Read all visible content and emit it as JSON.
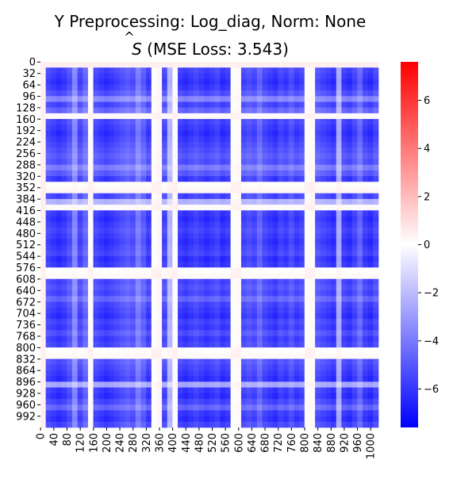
{
  "chart_data": {
    "type": "heatmap",
    "title_line1": "Y Preprocessing: Log_diag, Norm: None",
    "title_line2_symbol": "S",
    "title_line2_hat": "^",
    "title_line2_text": " (MSE Loss: 3.543)",
    "matrix_size": 1024,
    "y_ticks": [
      "0",
      "32",
      "64",
      "96",
      "128",
      "160",
      "192",
      "224",
      "256",
      "288",
      "320",
      "352",
      "384",
      "416",
      "448",
      "480",
      "512",
      "544",
      "576",
      "608",
      "640",
      "672",
      "704",
      "736",
      "768",
      "800",
      "832",
      "864",
      "896",
      "928",
      "960",
      "992"
    ],
    "x_ticks": [
      "0",
      "40",
      "80",
      "120",
      "160",
      "200",
      "240",
      "280",
      "320",
      "360",
      "400",
      "440",
      "480",
      "520",
      "560",
      "600",
      "640",
      "680",
      "720",
      "760",
      "800",
      "840",
      "880",
      "920",
      "960",
      "1000"
    ],
    "colorbar": {
      "vmin": -7.6,
      "vmax": 7.6,
      "ticks": [
        "6",
        "4",
        "2",
        "0",
        "−2",
        "−4",
        "−6"
      ],
      "tick_values": [
        6,
        4,
        2,
        0,
        -2,
        -4,
        -6
      ],
      "colormap": "bwr"
    },
    "colors": {
      "low": "#0000ff",
      "mid": "#ffffff",
      "high": "#ff0000"
    },
    "profile": {
      "bins": 64,
      "weights": [
        0.0,
        0.85,
        0.9,
        0.95,
        0.9,
        0.8,
        0.55,
        0.85,
        0.7,
        0.15,
        0.85,
        0.9,
        0.95,
        0.9,
        0.85,
        0.8,
        0.75,
        0.8,
        0.6,
        0.75,
        0.9,
        0.2,
        0.1,
        0.85,
        0.35,
        0.15,
        0.9,
        0.95,
        0.9,
        0.85,
        0.9,
        0.95,
        0.9,
        0.85,
        0.95,
        0.9,
        0.2,
        0.15,
        0.85,
        0.8,
        0.85,
        0.7,
        0.85,
        0.9,
        0.95,
        0.85,
        0.9,
        0.8,
        0.9,
        0.85,
        0.2,
        0.15,
        0.8,
        0.85,
        0.9,
        0.95,
        0.4,
        0.9,
        0.95,
        0.85,
        0.7,
        0.9,
        0.95,
        0.85
      ],
      "neg_value_max": -7.2,
      "pos_value_max": 0.8
    }
  }
}
